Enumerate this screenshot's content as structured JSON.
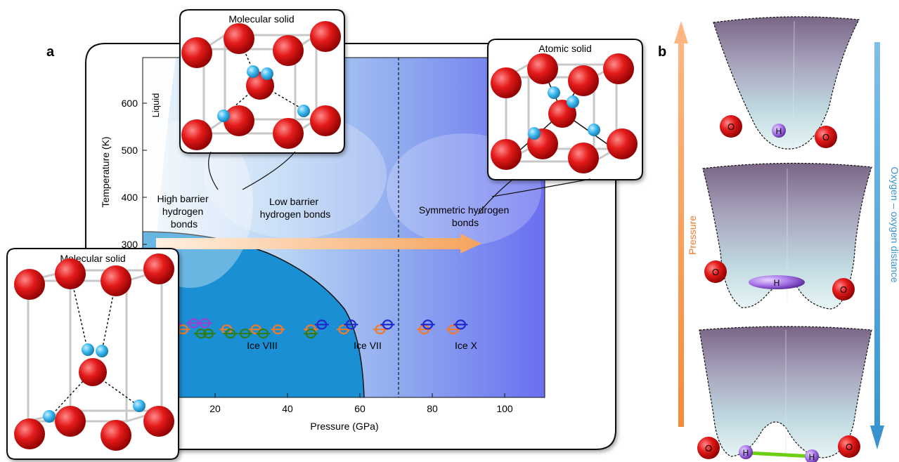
{
  "panel_a": {
    "letter": "a",
    "xlabel": "Pressure (GPa)",
    "ylabel": "Temperature (K)",
    "x_ticks": [
      "20",
      "40",
      "60",
      "80",
      "100"
    ],
    "y_ticks": [
      "300",
      "400",
      "500",
      "600"
    ],
    "liquid_label": "Liquid",
    "region_labels": {
      "high_barrier": [
        "High barrier",
        "hydrogen",
        "bonds"
      ],
      "low_barrier": [
        "Low barrier",
        "hydrogen bonds"
      ],
      "symmetric": [
        "Symmetric hydrogen",
        "bonds"
      ]
    },
    "phase_labels": {
      "ice8": "Ice VIII",
      "ice7": "Ice VII",
      "ice10": "Ice X"
    },
    "insets": {
      "top_left_title": "Molecular solid",
      "top_right_title": "Atomic solid",
      "bottom_left_title": "Molecular solid"
    },
    "colors": {
      "orange": "#f47a26",
      "purple": "#9b3fd6",
      "green": "#2e7d1e",
      "blue": "#1f2bd0",
      "ice_blue": "#1a8fd4",
      "atom_red": "#e41a1a",
      "atom_cyan": "#3cb8ef"
    }
  },
  "panel_b": {
    "letter": "b",
    "pressure_label": "Pressure",
    "distance_label": "Oxygen – oxygen distance",
    "atom_O": "O",
    "atom_H": "H"
  },
  "chart_data": {
    "type": "scatter",
    "xlabel": "Pressure (GPa)",
    "ylabel": "Temperature (K)",
    "xlim": [
      0,
      110
    ],
    "ylim": [
      200,
      690
    ],
    "series": [
      {
        "color": "#9b3fd6",
        "points": [
          [
            7,
            305
          ],
          [
            9,
            305
          ],
          [
            14,
            307
          ],
          [
            17,
            307
          ]
        ]
      },
      {
        "color": "#f47a26",
        "points": [
          [
            5,
            298
          ],
          [
            11,
            298
          ],
          [
            23,
            298
          ],
          [
            31,
            298
          ],
          [
            37,
            298
          ],
          [
            46,
            298
          ],
          [
            55,
            298
          ],
          [
            65,
            298
          ],
          [
            77,
            298
          ],
          [
            85,
            298
          ]
        ]
      },
      {
        "color": "#2e7d1e",
        "points": [
          [
            16,
            292
          ],
          [
            18,
            292
          ],
          [
            24,
            292
          ],
          [
            28,
            292
          ],
          [
            33,
            292
          ],
          [
            46,
            292
          ]
        ]
      },
      {
        "color": "#1f2bd0",
        "points": [
          [
            49,
            305
          ],
          [
            57,
            305
          ],
          [
            67,
            305
          ],
          [
            78,
            305
          ],
          [
            87,
            305
          ]
        ]
      }
    ]
  }
}
